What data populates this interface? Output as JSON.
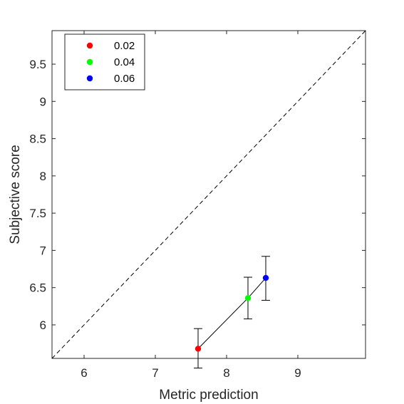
{
  "chart_data": {
    "type": "scatter",
    "xlabel": "Metric prediction",
    "ylabel": "Subjective score",
    "xlim": [
      5.55,
      9.95
    ],
    "ylim": [
      5.55,
      9.95
    ],
    "xticks": [
      "6",
      "7",
      "8",
      "9"
    ],
    "yticks": [
      "6",
      "6.5",
      "7",
      "7.5",
      "8",
      "8.5",
      "9",
      "9.5"
    ],
    "grid": false,
    "legend_position": "top-left",
    "identity_line": true,
    "series": [
      {
        "name": "0.02",
        "color": "#ff0000",
        "x": 7.6,
        "y": 5.68,
        "err_low": 5.42,
        "err_high": 5.95
      },
      {
        "name": "0.04",
        "color": "#00ff00",
        "x": 8.3,
        "y": 6.36,
        "err_low": 6.08,
        "err_high": 6.64
      },
      {
        "name": "0.06",
        "color": "#0000ff",
        "x": 8.55,
        "y": 6.63,
        "err_low": 6.33,
        "err_high": 6.92
      }
    ]
  }
}
